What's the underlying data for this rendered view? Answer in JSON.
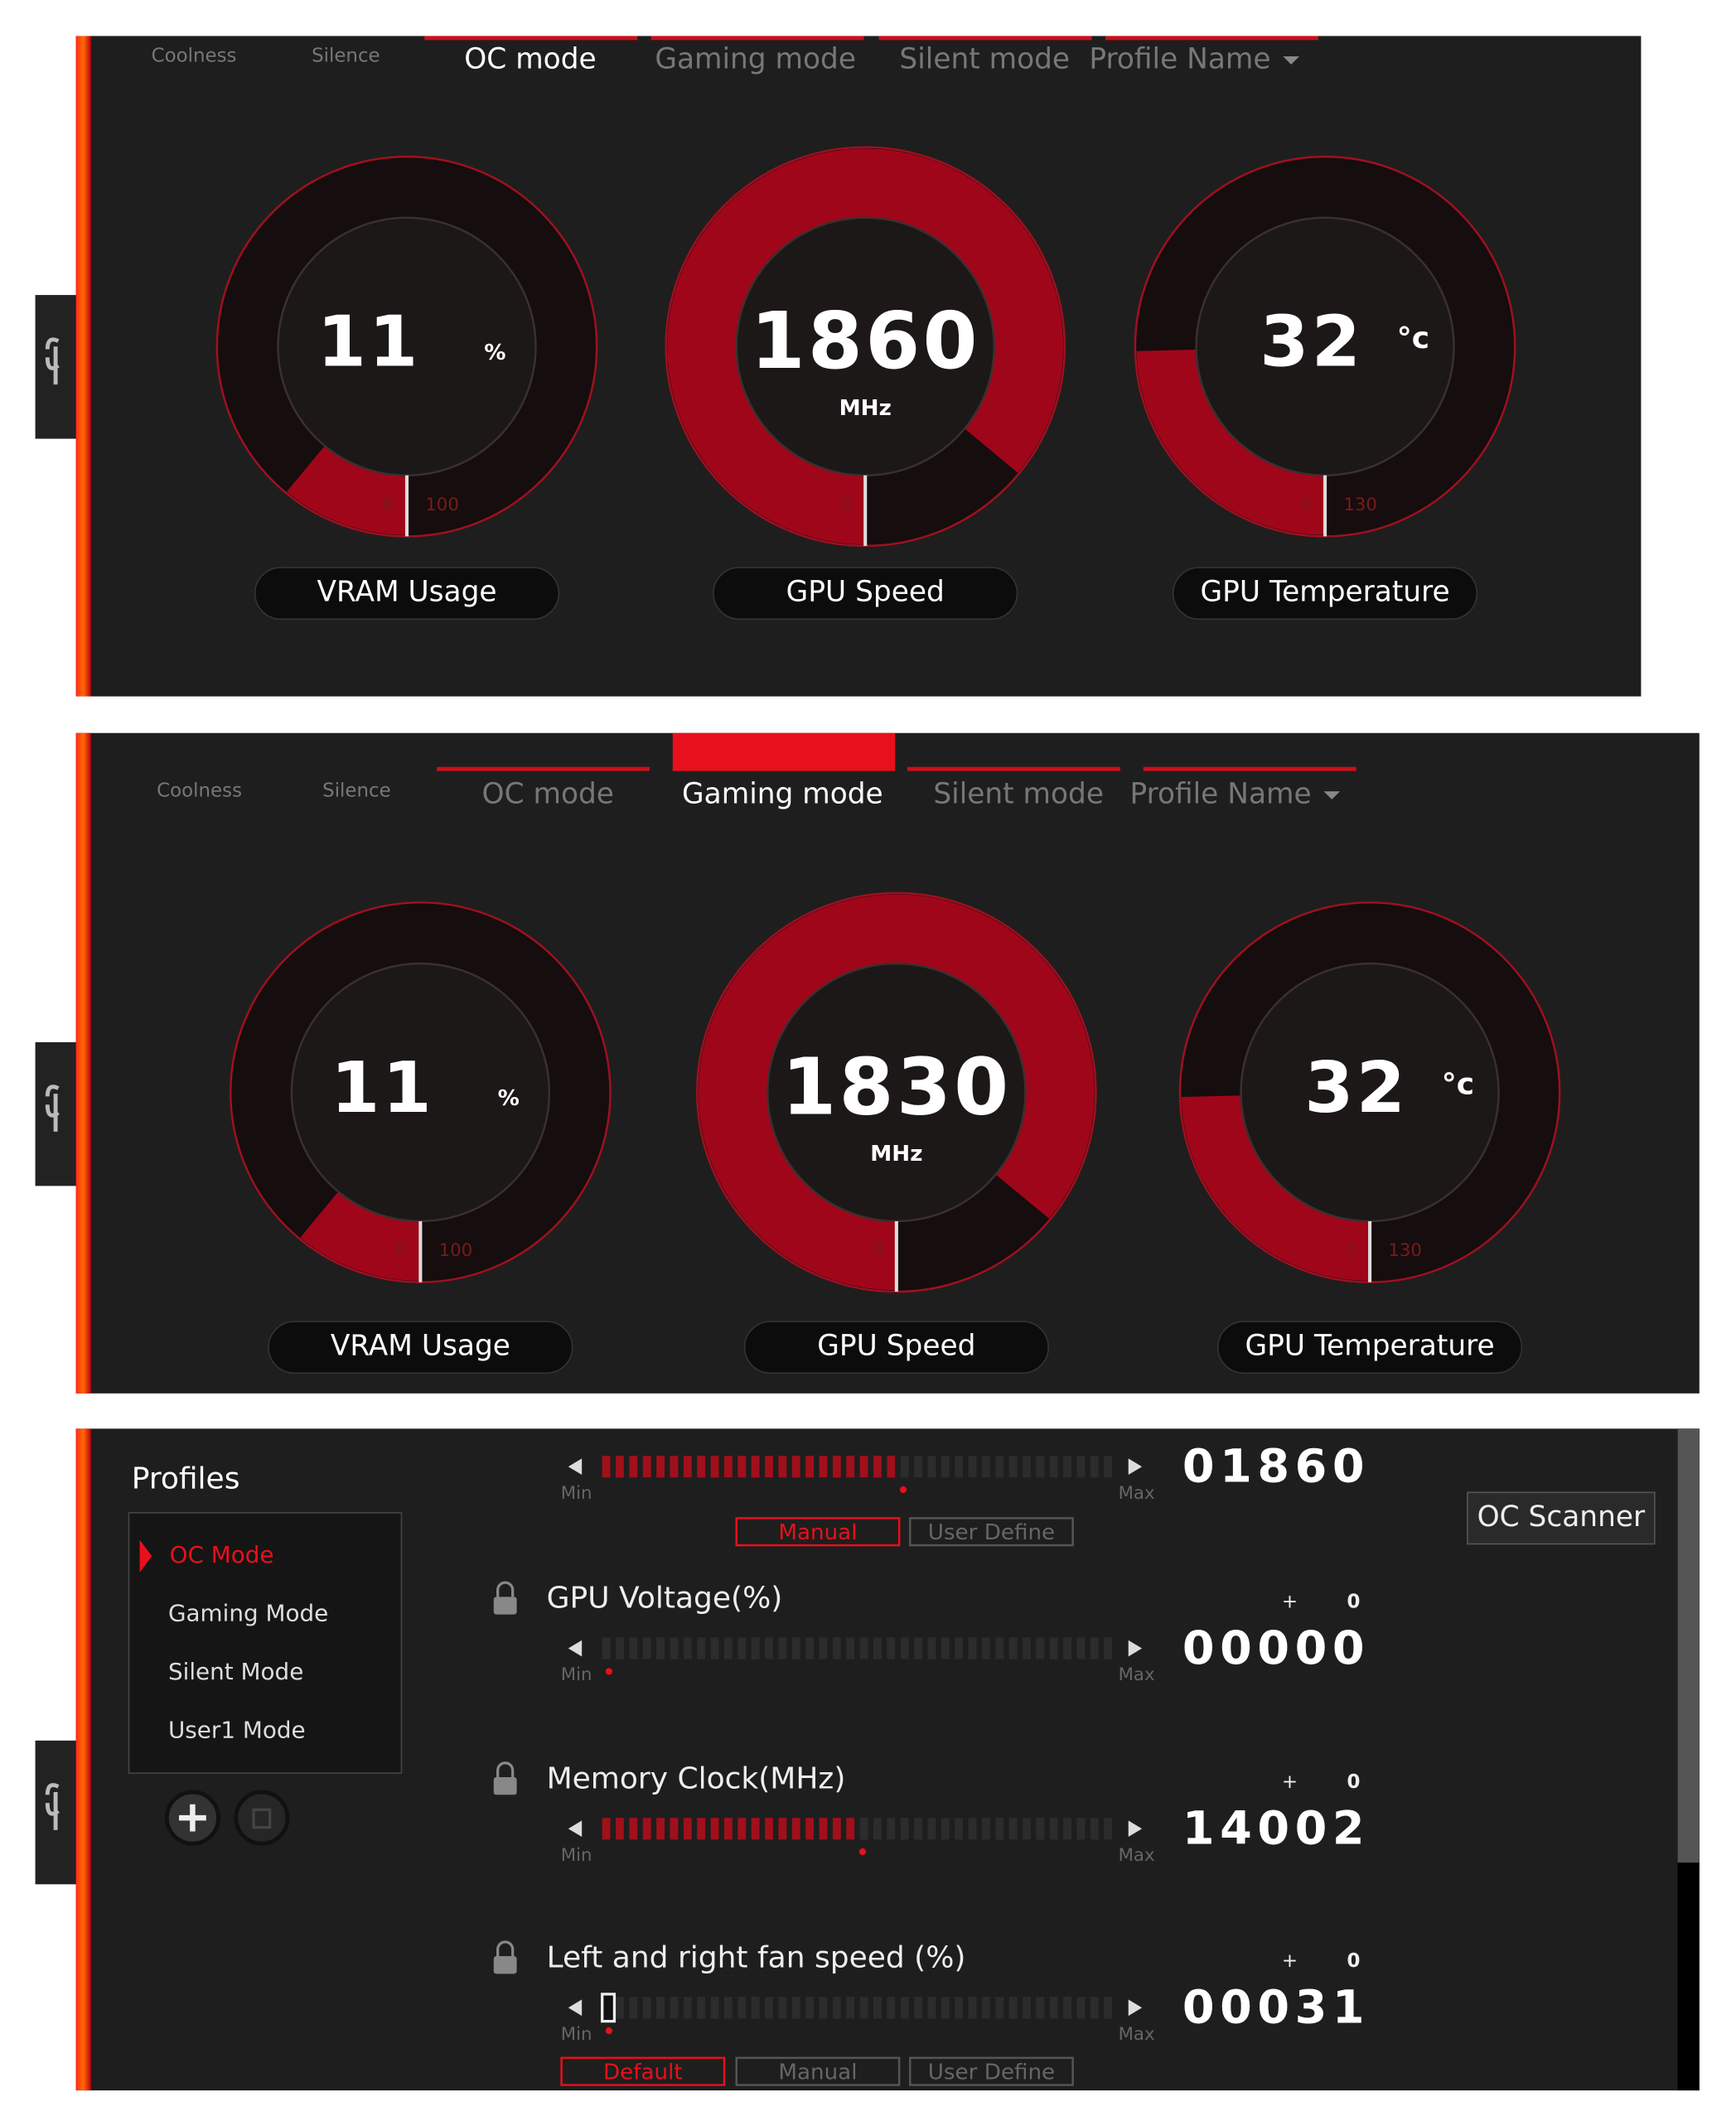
{
  "panels": [
    {
      "tabs": [
        "Coolness",
        "Silence",
        "OC mode",
        "Gaming mode",
        "Silent mode",
        "Profile Name"
      ],
      "gauges": [
        {
          "value": 11,
          "unit": "%",
          "label": "VRAM Usage",
          "min": 0,
          "max": 100
        },
        {
          "value": 1860,
          "unit": "MHz",
          "label": "GPU Speed",
          "min": 0
        },
        {
          "value": 32,
          "unit": "°c",
          "label": "GPU Temperature",
          "min": 0,
          "max": 130
        }
      ]
    },
    {
      "tabs": [
        "Coolness",
        "Silence",
        "OC mode",
        "Gaming mode",
        "Silent mode",
        "Profile Name"
      ],
      "gauges": [
        {
          "value": 11,
          "unit": "%",
          "label": "VRAM Usage",
          "min": 0,
          "max": 100
        },
        {
          "value": 1830,
          "unit": "MHz",
          "label": "GPU Speed",
          "min": 0
        },
        {
          "value": 32,
          "unit": "°c",
          "label": "GPU Temperature",
          "min": 0,
          "max": 130
        }
      ]
    }
  ],
  "tuning": {
    "title": "Profiles",
    "profiles": [
      "OC Mode",
      "Gaming Mode",
      "Silent Mode",
      "User1 Mode"
    ],
    "oc_scanner": "OC Scanner",
    "sliders": [
      {
        "value": "01860",
        "min": "Min",
        "max": "Max",
        "buttons": [
          "Manual",
          "User Define"
        ]
      },
      {
        "label": "GPU Voltage(%)",
        "value": "00000",
        "min": "Min",
        "max": "Max",
        "sign": "+",
        "offset": "0"
      },
      {
        "label": "Memory Clock(MHz)",
        "value": "14002",
        "min": "Min",
        "max": "Max",
        "sign": "+",
        "offset": "0"
      },
      {
        "label": "Left and right fan speed (%)",
        "value": "00031",
        "min": "Min",
        "max": "Max",
        "sign": "+",
        "offset": "0",
        "buttons": [
          "Default",
          "Manual",
          "User Define"
        ]
      }
    ]
  }
}
